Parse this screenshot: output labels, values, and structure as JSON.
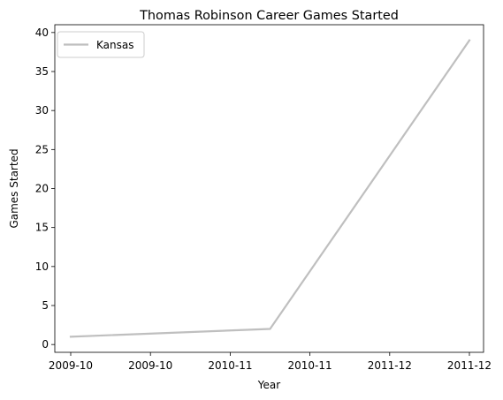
{
  "chart_data": {
    "type": "line",
    "title": "Thomas Robinson  Career Games Started",
    "xlabel": "Year",
    "ylabel": "Games Started",
    "x_tick_labels": [
      "2009-10",
      "2009-10",
      "2010-11",
      "2010-11",
      "2011-12",
      "2011-12"
    ],
    "y_ticks": [
      0,
      5,
      10,
      15,
      20,
      25,
      30,
      35,
      40
    ],
    "x": [
      "2009-10",
      "2010-11",
      "2011-12"
    ],
    "series": [
      {
        "name": "Kansas",
        "color": "#bfbfbf",
        "values": [
          1,
          2,
          39
        ]
      }
    ],
    "legend": {
      "position": "top-left"
    },
    "grid": false
  }
}
